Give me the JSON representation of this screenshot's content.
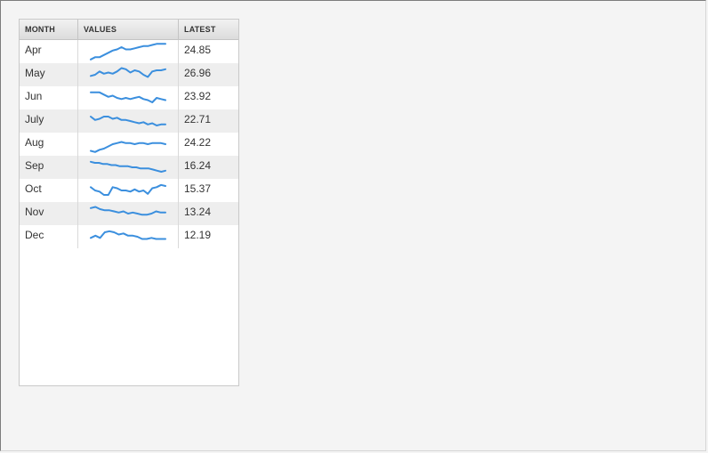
{
  "columns": {
    "month": "MONTH",
    "values": "VALUES",
    "latest": "LATEST"
  },
  "accent_color": "#3b8fde",
  "rows": [
    {
      "month": "Apr",
      "latest": "24.85",
      "spark": [
        4,
        6,
        6,
        8,
        10,
        12,
        13,
        15,
        13,
        13,
        14,
        15,
        16,
        16,
        17,
        18,
        18,
        18
      ]
    },
    {
      "month": "May",
      "latest": "26.96",
      "spark": [
        10,
        11,
        14,
        12,
        13,
        12,
        14,
        17,
        16,
        13,
        15,
        14,
        11,
        9,
        14,
        15,
        15,
        16
      ]
    },
    {
      "month": "Jun",
      "latest": "23.92",
      "spark": [
        16,
        16,
        16,
        14,
        12,
        13,
        11,
        10,
        11,
        10,
        11,
        12,
        10,
        9,
        7,
        11,
        10,
        9
      ]
    },
    {
      "month": "July",
      "latest": "22.71",
      "spark": [
        15,
        12,
        13,
        15,
        15,
        13,
        14,
        12,
        12,
        11,
        10,
        9,
        10,
        8,
        9,
        7,
        8,
        8
      ]
    },
    {
      "month": "Aug",
      "latest": "24.22",
      "spark": [
        5,
        4,
        6,
        7,
        9,
        11,
        12,
        13,
        12,
        12,
        11,
        12,
        12,
        11,
        12,
        12,
        12,
        11
      ]
    },
    {
      "month": "Sep",
      "latest": "16.24",
      "spark": [
        16,
        15,
        15,
        14,
        14,
        13,
        13,
        12,
        12,
        12,
        11,
        11,
        10,
        10,
        10,
        9,
        8,
        7,
        8
      ]
    },
    {
      "month": "Oct",
      "latest": "15.37",
      "spark": [
        14,
        11,
        10,
        7,
        7,
        14,
        13,
        11,
        11,
        10,
        12,
        10,
        11,
        8,
        13,
        14,
        16,
        15
      ]
    },
    {
      "month": "Nov",
      "latest": "13.24",
      "spark": [
        16,
        17,
        15,
        14,
        14,
        13,
        12,
        13,
        11,
        12,
        11,
        10,
        10,
        11,
        13,
        12,
        12
      ]
    },
    {
      "month": "Dec",
      "latest": "12.19",
      "spark": [
        10,
        12,
        10,
        15,
        16,
        15,
        13,
        14,
        12,
        12,
        11,
        9,
        9,
        10,
        9,
        9,
        9
      ]
    }
  ]
}
